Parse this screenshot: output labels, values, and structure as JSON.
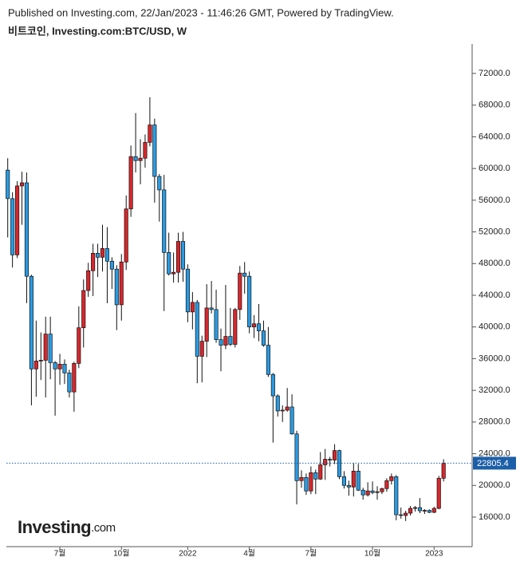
{
  "chart_data": {
    "type": "candlestick",
    "published": "Published on Investing.com, 22/Jan/2023 - 11:46:26 GMT, Powered by TradingView.",
    "title": "비트코인, Investing.com:BTC/USD, W",
    "brand": "Investing",
    "brand_suffix": ".com",
    "categories": [
      null,
      null,
      null,
      null,
      null,
      null,
      null,
      null,
      null,
      null,
      null,
      "7월",
      null,
      null,
      null,
      null,
      null,
      null,
      null,
      null,
      null,
      null,
      null,
      null,
      "10월",
      null,
      null,
      null,
      null,
      null,
      null,
      null,
      null,
      null,
      null,
      null,
      null,
      null,
      "2022",
      null,
      null,
      null,
      null,
      null,
      null,
      null,
      null,
      null,
      null,
      null,
      null,
      "4월",
      null,
      null,
      null,
      null,
      null,
      null,
      null,
      null,
      null,
      null,
      null,
      null,
      "7월",
      null,
      null,
      null,
      null,
      null,
      null,
      null,
      null,
      null,
      null,
      null,
      null,
      "10월",
      null,
      null,
      null,
      null,
      null,
      null,
      null,
      null,
      null,
      null,
      null,
      null,
      "2023",
      null,
      null
    ],
    "open": [
      59800,
      56200,
      49100,
      57800,
      58200,
      46400,
      34700,
      35700,
      35800,
      39100,
      35500,
      34700,
      35300,
      34200,
      31800,
      35400,
      39900,
      44600,
      47100,
      49300,
      48800,
      49900,
      48300,
      47300,
      42800,
      48200,
      54900,
      61500,
      61000,
      61300,
      63300,
      65500,
      59000,
      57300,
      49400,
      46700,
      46900,
      50800,
      47300,
      41900,
      43100,
      36300,
      38200,
      42400,
      42200,
      38400,
      37700,
      38800,
      37800,
      42200,
      46800,
      46400,
      40000,
      40400,
      39500,
      37700,
      34000,
      31300,
      29400,
      29500,
      29900,
      26500,
      20600,
      21000,
      19300,
      21600,
      20800,
      22600,
      23300,
      23200,
      24400,
      21100,
      20000,
      19800,
      21800,
      19400,
      18800,
      19300,
      19100,
      19200,
      19600,
      20600,
      21100,
      16300,
      16200,
      16500,
      17100,
      17200,
      16800,
      16850,
      16600,
      17100,
      20900
    ],
    "high": [
      61300,
      57000,
      58400,
      59600,
      59500,
      46600,
      40800,
      39300,
      41300,
      41300,
      35700,
      36600,
      35900,
      34600,
      35600,
      42600,
      46000,
      48100,
      50500,
      50500,
      52900,
      52600,
      48800,
      47800,
      49200,
      56600,
      62900,
      67000,
      63700,
      64300,
      69000,
      66300,
      59300,
      59200,
      51900,
      49400,
      51900,
      52000,
      47900,
      44400,
      43400,
      38900,
      45400,
      45800,
      44700,
      39800,
      45300,
      42400,
      42400,
      47700,
      48200,
      47000,
      41500,
      42900,
      40800,
      40000,
      34200,
      31500,
      30100,
      32300,
      31500,
      26900,
      21900,
      21500,
      22400,
      22000,
      24200,
      24600,
      23600,
      25200,
      24500,
      21800,
      20600,
      22800,
      22700,
      19700,
      20400,
      20500,
      19900,
      19700,
      20900,
      21500,
      21300,
      17200,
      16800,
      17400,
      17400,
      18400,
      17000,
      16970,
      17300,
      21200,
      23300
    ],
    "low": [
      51300,
      47500,
      48700,
      52900,
      43000,
      30100,
      31200,
      33300,
      31100,
      33400,
      28800,
      32700,
      32800,
      31100,
      29300,
      34800,
      37400,
      43800,
      43900,
      46300,
      47000,
      43000,
      44800,
      39600,
      40800,
      47200,
      53900,
      59500,
      58000,
      60100,
      62800,
      55700,
      53300,
      42000,
      46500,
      45600,
      45600,
      45700,
      40600,
      39700,
      32900,
      33000,
      36200,
      41700,
      38000,
      34400,
      37200,
      37600,
      37400,
      40900,
      44200,
      39200,
      38600,
      38200,
      37500,
      33700,
      25400,
      28700,
      28000,
      29300,
      26400,
      17600,
      19700,
      18800,
      18900,
      18900,
      20700,
      20700,
      22400,
      22700,
      20800,
      19600,
      18700,
      18600,
      19300,
      18200,
      18600,
      18900,
      18200,
      18900,
      19200,
      20100,
      15600,
      15800,
      15500,
      16200,
      16700,
      16500,
      16400,
      16500,
      16500,
      17000,
      20500
    ],
    "close": [
      56200,
      49100,
      57800,
      58200,
      46400,
      34700,
      35700,
      35800,
      39100,
      35500,
      34700,
      35300,
      34200,
      31800,
      35400,
      39900,
      44600,
      47100,
      49300,
      48800,
      49900,
      48300,
      47300,
      42800,
      48200,
      54900,
      61500,
      61000,
      61300,
      63300,
      65500,
      59000,
      57300,
      49400,
      46700,
      46900,
      50800,
      47300,
      41900,
      43100,
      36300,
      38200,
      42400,
      42200,
      38400,
      37700,
      38800,
      37800,
      42200,
      46800,
      46400,
      40000,
      40400,
      39500,
      37700,
      34000,
      31300,
      29400,
      29500,
      29900,
      26500,
      20600,
      21000,
      19300,
      21600,
      20800,
      22600,
      23300,
      23200,
      24400,
      21100,
      20000,
      19800,
      21800,
      19400,
      18800,
      19300,
      19100,
      19200,
      19600,
      20600,
      21100,
      16300,
      16200,
      16500,
      17100,
      17200,
      16800,
      16850,
      16600,
      17100,
      20900,
      22805.4
    ],
    "up_color": "#d9262c",
    "down_color": "#2a9be3",
    "last_price_color": "#1c5fa8",
    "ylim": [
      12270,
      75730
    ],
    "yticks": [
      {
        "value": 16000,
        "label": "16000.0"
      },
      {
        "value": 20000,
        "label": "20000.0"
      },
      {
        "value": 24000,
        "label": "24000.0"
      },
      {
        "value": 28000,
        "label": "28000.0"
      },
      {
        "value": 32000,
        "label": "32000.0"
      },
      {
        "value": 36000,
        "label": "36000.0"
      },
      {
        "value": 40000,
        "label": "40000.0"
      },
      {
        "value": 44000,
        "label": "44000.0"
      },
      {
        "value": 48000,
        "label": "48000.0"
      },
      {
        "value": 52000,
        "label": "52000.0"
      },
      {
        "value": 56000,
        "label": "56000.0"
      },
      {
        "value": 60000,
        "label": "60000.0"
      },
      {
        "value": 64000,
        "label": "64000.0"
      },
      {
        "value": 68000,
        "label": "68000.0"
      },
      {
        "value": 72000,
        "label": "72000.0"
      }
    ],
    "grid": false
  }
}
